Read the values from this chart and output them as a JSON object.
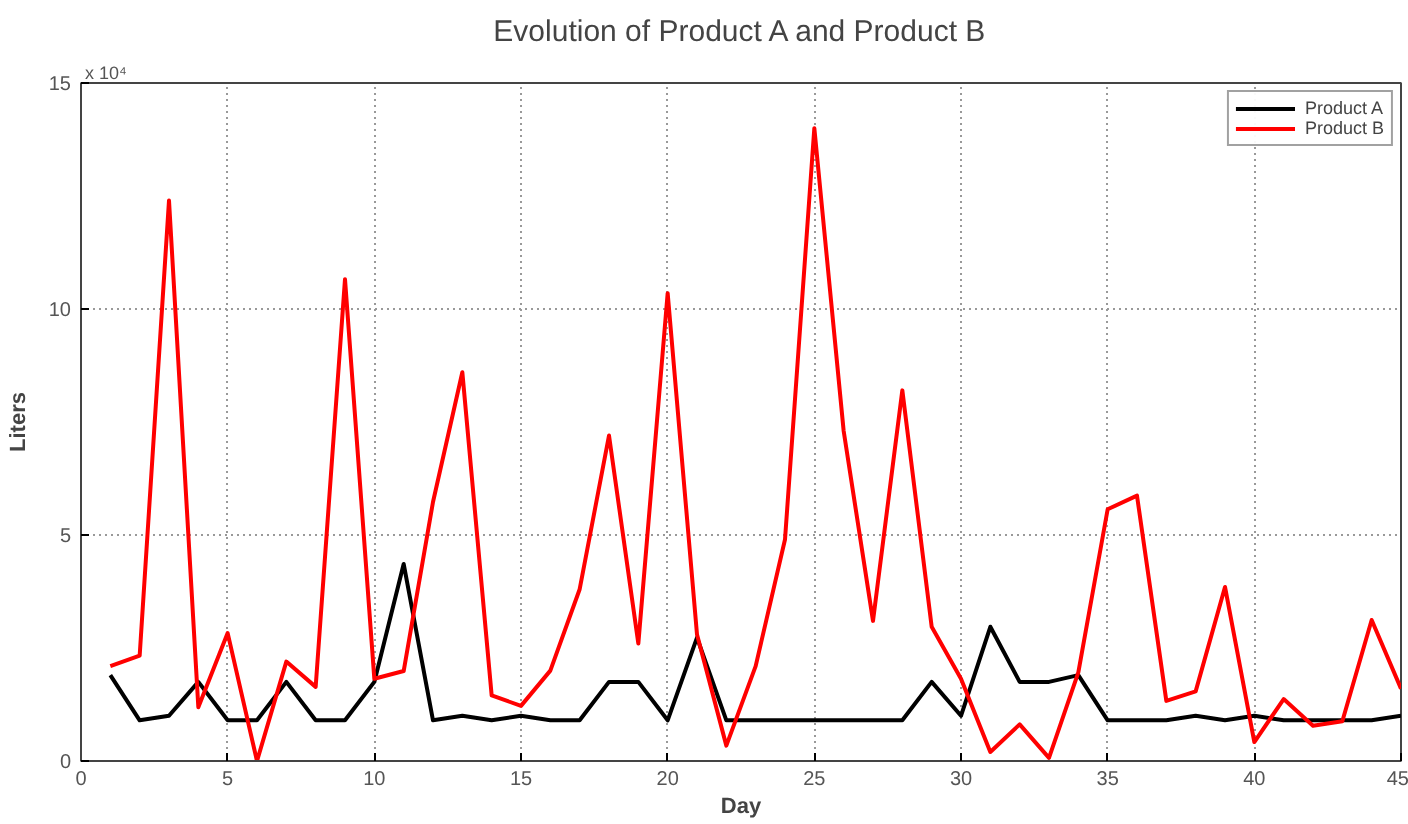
{
  "chart_data": {
    "type": "line",
    "title": "Evolution of Product A and Product B",
    "xlabel": "Day",
    "ylabel": "Liters",
    "annotations": [
      "x 10⁴"
    ],
    "x": [
      1,
      2,
      3,
      4,
      5,
      6,
      7,
      8,
      9,
      10,
      11,
      12,
      13,
      14,
      15,
      16,
      17,
      18,
      19,
      20,
      21,
      22,
      23,
      24,
      25,
      26,
      27,
      28,
      29,
      30,
      31,
      32,
      33,
      34,
      35,
      36,
      37,
      38,
      39,
      40,
      41,
      42,
      43,
      44,
      45
    ],
    "series": [
      {
        "name": "Product A",
        "color": "#000000",
        "values": [
          1.9,
          0.9,
          1.0,
          1.75,
          0.9,
          0.9,
          1.75,
          0.9,
          0.9,
          1.75,
          4.36,
          0.9,
          1.0,
          0.9,
          1.0,
          0.9,
          0.9,
          1.75,
          1.75,
          0.9,
          2.73,
          0.9,
          0.9,
          0.9,
          0.9,
          0.9,
          0.9,
          0.9,
          1.75,
          1.0,
          2.97,
          1.75,
          1.75,
          1.9,
          0.9,
          0.9,
          0.9,
          1.0,
          0.9,
          1.0,
          0.9,
          0.9,
          0.9,
          0.9,
          1.0
        ]
      },
      {
        "name": "Product B",
        "color": "#ff0000",
        "values": [
          2.1,
          2.33,
          12.4,
          1.19,
          2.83,
          0.0,
          2.2,
          1.64,
          10.66,
          1.82,
          1.99,
          5.73,
          8.6,
          1.45,
          1.22,
          2.0,
          3.8,
          7.2,
          2.6,
          10.35,
          2.8,
          0.34,
          2.1,
          4.9,
          14.0,
          7.3,
          3.1,
          8.2,
          2.97,
          1.82,
          0.2,
          0.81,
          0.07,
          1.96,
          5.57,
          5.87,
          1.33,
          1.54,
          3.85,
          0.42,
          1.37,
          0.78,
          0.88,
          3.12,
          1.6
        ]
      }
    ],
    "xlim": [
      0,
      45
    ],
    "ylim": [
      0,
      15
    ],
    "xticks": [
      0,
      5,
      10,
      15,
      20,
      25,
      30,
      35,
      40,
      45
    ],
    "yticks": [
      0,
      5,
      10,
      15
    ],
    "grid": true,
    "legend": "top right",
    "line_style": "solid"
  }
}
